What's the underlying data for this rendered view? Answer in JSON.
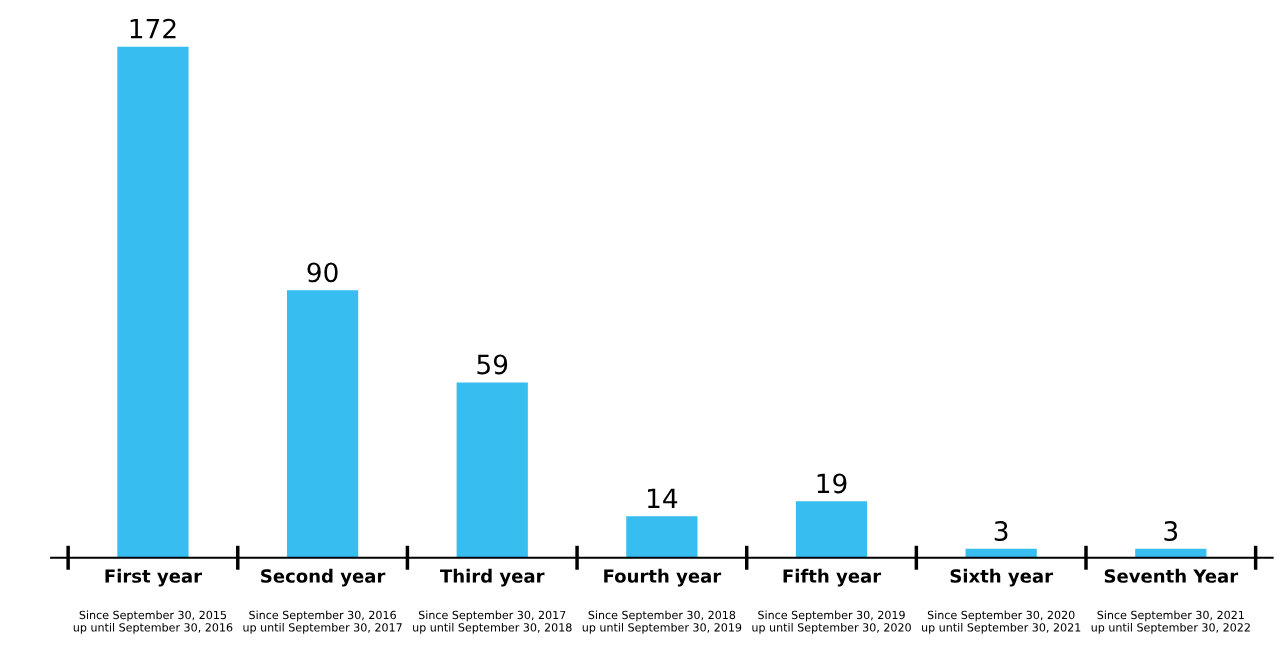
{
  "chart_data": {
    "type": "bar",
    "categories": [
      "First year",
      "Second year",
      "Third year",
      "Fourth year",
      "Fifth year",
      "Sixth year",
      "Seventh Year"
    ],
    "values": [
      172,
      90,
      59,
      14,
      19,
      3,
      3
    ],
    "color": "#38bdf0",
    "data_labels": true,
    "annotations": [
      "Since September 30, 2015\nup until September 30, 2016",
      "Since September 30, 2016\nup until September 30, 2017",
      "Since September 30, 2017\nup until September 30, 2018",
      "Since September 30, 2018\nup until September 30, 2019",
      "Since September 30, 2019\nup until September 30, 2020",
      "Since September 30, 2020\nup until September 30, 2021",
      "Since September 30, 2021\nup until September 30, 2022"
    ]
  }
}
